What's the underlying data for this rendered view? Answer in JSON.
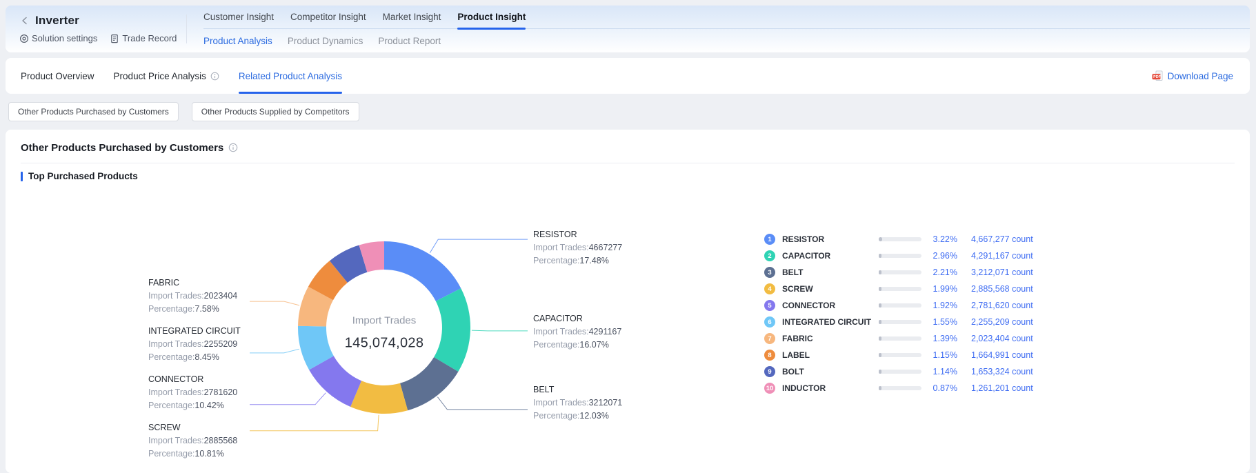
{
  "colors": {
    "accent_blue": "#2563eb",
    "link_blue": "#2a6ae0",
    "value_blue": "#3e6cf2",
    "pdf_red": "#e5493a"
  },
  "header": {
    "back_icon": "‹",
    "title": "Inverter",
    "actions": [
      {
        "label": "Solution settings"
      },
      {
        "label": "Trade Record"
      }
    ],
    "tabs": [
      "Customer Insight",
      "Competitor Insight",
      "Market Insight",
      "Product Insight"
    ],
    "active_tab": "Product Insight",
    "subtabs": [
      "Product Analysis",
      "Product Dynamics",
      "Product Report"
    ],
    "active_subtab": "Product Analysis"
  },
  "toolbar": {
    "tabs": [
      {
        "label": "Product Overview"
      },
      {
        "label": "Product Price Analysis",
        "info": true
      },
      {
        "label": "Related Product Analysis"
      }
    ],
    "active": "Related Product Analysis",
    "download_label": "Download Page",
    "pdf_badge": "PDF"
  },
  "filter_buttons": [
    "Other Products Purchased by Customers",
    "Other Products Supplied by Competitors"
  ],
  "section": {
    "title": "Other Products Purchased by Customers",
    "subtitle": "Top Purchased Products"
  },
  "chart_data": {
    "type": "pie",
    "center_label": "Import Trades",
    "center_value": "145,074,028",
    "trades_prefix": "Import Trades:",
    "pct_prefix": "Percentage:",
    "segments": [
      {
        "rank": 1,
        "name": "RESISTOR",
        "import_trades": "4667277",
        "donut_pct": 17.48,
        "share": "3.22%",
        "count": "4,667,277 count",
        "color": "#5a8df7",
        "labeled": true
      },
      {
        "rank": 2,
        "name": "CAPACITOR",
        "import_trades": "4291167",
        "donut_pct": 16.07,
        "share": "2.96%",
        "count": "4,291,167 count",
        "color": "#2fd3b4",
        "labeled": true
      },
      {
        "rank": 3,
        "name": "BELT",
        "import_trades": "3212071",
        "donut_pct": 12.03,
        "share": "2.21%",
        "count": "3,212,071 count",
        "color": "#5d7092",
        "labeled": true
      },
      {
        "rank": 4,
        "name": "SCREW",
        "import_trades": "2885568",
        "donut_pct": 10.81,
        "share": "1.99%",
        "count": "2,885,568 count",
        "color": "#f2bc42",
        "labeled": true
      },
      {
        "rank": 5,
        "name": "CONNECTOR",
        "import_trades": "2781620",
        "donut_pct": 10.42,
        "share": "1.92%",
        "count": "2,781,620 count",
        "color": "#8478ee",
        "labeled": true
      },
      {
        "rank": 6,
        "name": "INTEGRATED CIRCUIT",
        "import_trades": "2255209",
        "donut_pct": 8.45,
        "share": "1.55%",
        "count": "2,255,209 count",
        "color": "#6fc7f7",
        "labeled": true
      },
      {
        "rank": 7,
        "name": "FABRIC",
        "import_trades": "2023404",
        "donut_pct": 7.58,
        "share": "1.39%",
        "count": "2,023,404 count",
        "color": "#f7b77e",
        "labeled": true
      },
      {
        "rank": 8,
        "name": "LABEL",
        "import_trades": "1664991",
        "donut_pct": 6.23,
        "share": "1.15%",
        "count": "1,664,991 count",
        "color": "#ee8c3d",
        "labeled": false
      },
      {
        "rank": 9,
        "name": "BOLT",
        "import_trades": "1653324",
        "donut_pct": 6.19,
        "share": "1.14%",
        "count": "1,653,324 count",
        "color": "#5468be",
        "labeled": false
      },
      {
        "rank": 10,
        "name": "INDUCTOR",
        "import_trades": "1261201",
        "donut_pct": 4.72,
        "share": "0.87%",
        "count": "1,261,201 count",
        "color": "#ef8fb7",
        "labeled": false
      }
    ]
  }
}
